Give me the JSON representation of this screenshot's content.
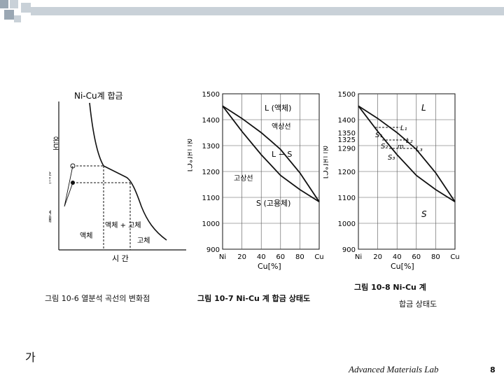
{
  "slide": {
    "note": "가",
    "lab": "Advanced Materials Lab",
    "page": "8"
  },
  "fig6": {
    "title": "Ni-Cu계 합금",
    "ylabel": "온도",
    "y_marks": [
      "온도",
      "변태"
    ],
    "region_left": "액체",
    "region_mid": "액체 + 고체",
    "region_right": "고체",
    "xlabel": "시 간",
    "caption": "그림 10-6  열분석 곡선의 변화점"
  },
  "fig7": {
    "yticks": [
      "1500",
      "1400",
      "1300",
      "1200",
      "1100",
      "1000",
      "900"
    ],
    "xticks": [
      "Ni",
      "20",
      "40",
      "60",
      "80",
      "Cu"
    ],
    "ylabel": "온 도[°C]",
    "xlabel": "Cu[%]",
    "label_liquid": "L (액체)",
    "label_liquidus": "액상선",
    "label_ls": "L − S",
    "label_solidus": "고상선",
    "label_solid": "S (고용체)",
    "caption": "그림 10-7   Ni-Cu 계 합금 상태도"
  },
  "fig8": {
    "yticks": [
      "1500",
      "1400",
      "1350",
      "1325",
      "1290",
      "1200",
      "1100",
      "1000",
      "900"
    ],
    "xticks": [
      "Ni",
      "20",
      "40",
      "60",
      "80",
      "Cu"
    ],
    "ylabel": "온 도[°C]",
    "xlabel": "Cu[%]",
    "label_L": "L",
    "label_L1": "L₁",
    "label_L2": "L₂",
    "label_L3": "L₃",
    "label_S1": "S₁",
    "label_S2": "S₂",
    "label_S3": "S₃",
    "label_m": "m",
    "label_S": "S",
    "caption_line1": "그림 10-8   Ni-Cu 계",
    "caption_line2": "합금 상태도"
  },
  "chart_data": {
    "type": "line",
    "title": "Ni-Cu 계 합금 상태도",
    "xlabel": "Cu[%]",
    "ylabel": "온 도[°C]",
    "xlim": [
      0,
      100
    ],
    "ylim": [
      900,
      1500
    ],
    "series": [
      {
        "name": "액상선",
        "x": [
          0,
          20,
          40,
          50,
          60,
          80,
          100
        ],
        "y": [
          1453,
          1405,
          1350,
          1318,
          1285,
          1195,
          1083
        ]
      },
      {
        "name": "고상선",
        "x": [
          0,
          20,
          40,
          50,
          60,
          80,
          100
        ],
        "y": [
          1453,
          1355,
          1265,
          1225,
          1185,
          1130,
          1083
        ]
      }
    ],
    "grid": true
  },
  "colors": {
    "ink": "#111111",
    "grid": "#555555",
    "deco1": "#9aa7b3",
    "deco2": "#c9d1d8"
  }
}
